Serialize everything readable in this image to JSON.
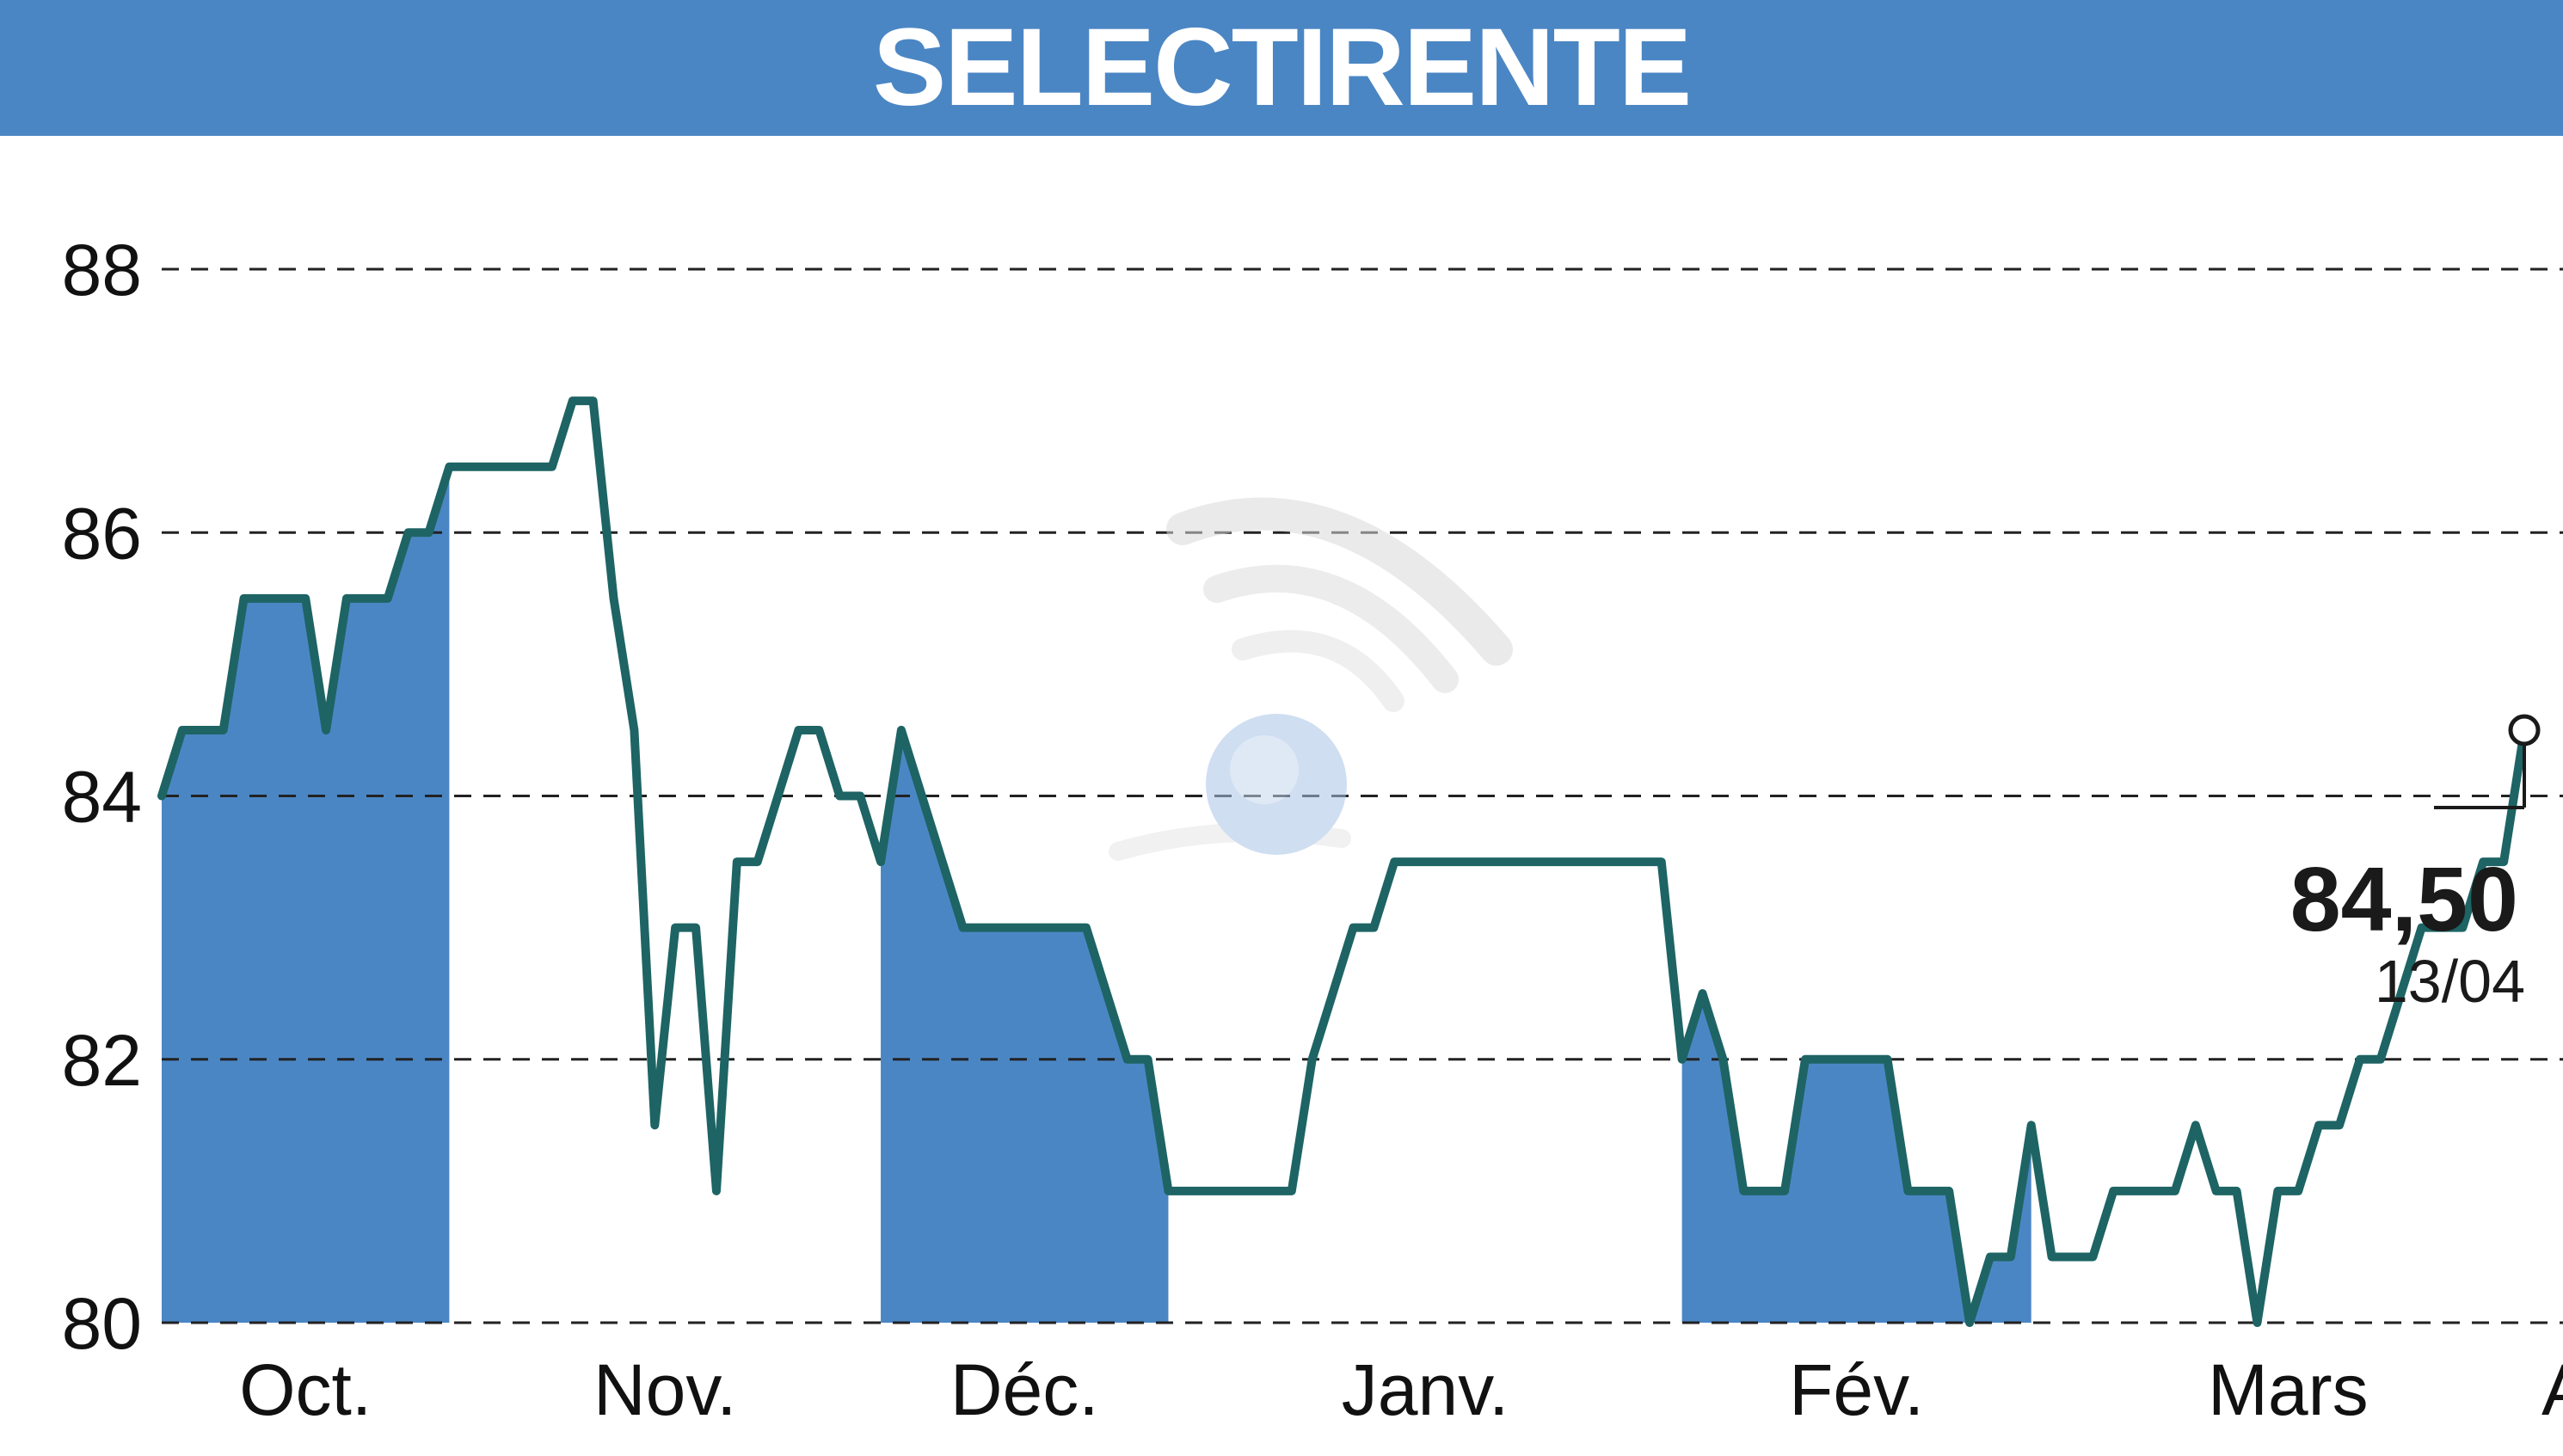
{
  "header": {
    "title": "SELECTIRENTE"
  },
  "colors": {
    "header": "#4b86c4",
    "band": "#4b86c4",
    "line": "#1e6464",
    "grid": "#222222"
  },
  "chart_data": {
    "type": "line",
    "title": "SELECTIRENTE",
    "ylim": [
      80,
      88
    ],
    "y_ticks": [
      "80",
      "82",
      "84",
      "86",
      "88"
    ],
    "x_ticks": [
      "Oct.",
      "Nov.",
      "Déc.",
      "Janv.",
      "Fév.",
      "Mars",
      "A."
    ],
    "grid": true,
    "last_value": "84,50",
    "last_date": "13/04",
    "series": [
      {
        "values": [
          84,
          84.5,
          84.5,
          84.5,
          85.5,
          85.5,
          85.5,
          85.5,
          84.5,
          85.5,
          85.5,
          85.5,
          86,
          86,
          86.5,
          86.5,
          86.5,
          86.5,
          86.5,
          86.5,
          87,
          87,
          85.5,
          84.5,
          81.5,
          83,
          83,
          81,
          83.5,
          83.5,
          84,
          84.5,
          84.5,
          84,
          84,
          83.5,
          84.5,
          84,
          83.5,
          83,
          83,
          83,
          83,
          83,
          83,
          83,
          82.5,
          82,
          82,
          81,
          81,
          81,
          81,
          81,
          81,
          81,
          82,
          82.5,
          83,
          83,
          83.5,
          83.5,
          83.5,
          83.5,
          83.5,
          83.5,
          83.5,
          83.5,
          83.5,
          83.5,
          83.5,
          83.5,
          83.5,
          83.5,
          82,
          82.5,
          82,
          81,
          81,
          81,
          82,
          82,
          82,
          82,
          82,
          81,
          81,
          81,
          80,
          80.5,
          80.5,
          81.5,
          80.5,
          80.5,
          80.5,
          81,
          81,
          81,
          81,
          81.5,
          81,
          81,
          80,
          81,
          81,
          81.5,
          81.5,
          82,
          82,
          82.5,
          83,
          83,
          83,
          83.5,
          83.5,
          84.5
        ]
      }
    ]
  }
}
